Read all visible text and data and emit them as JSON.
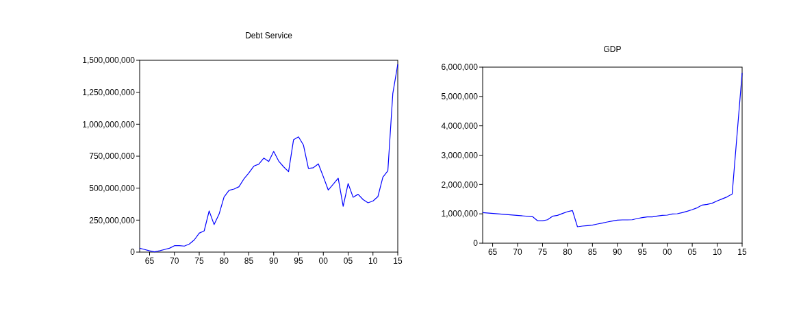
{
  "chart_data": [
    {
      "type": "line",
      "title": "Debt Service",
      "x": [
        1963,
        1964,
        1965,
        1966,
        1967,
        1968,
        1969,
        1970,
        1971,
        1972,
        1973,
        1974,
        1975,
        1976,
        1977,
        1978,
        1979,
        1980,
        1981,
        1982,
        1983,
        1984,
        1985,
        1986,
        1987,
        1988,
        1989,
        1990,
        1991,
        1992,
        1993,
        1994,
        1995,
        1996,
        1997,
        1998,
        1999,
        2000,
        2001,
        2002,
        2003,
        2004,
        2005,
        2006,
        2007,
        2008,
        2009,
        2010,
        2011,
        2012,
        2013,
        2014,
        2015
      ],
      "series": [
        {
          "color": "#0000ff",
          "values": [
            30000000,
            20000000,
            10000000,
            2000000,
            10000000,
            20000000,
            30000000,
            50000000,
            50000000,
            47000000,
            63000000,
            95000000,
            148000000,
            166000000,
            322000000,
            215000000,
            297000000,
            431000000,
            483000000,
            493000000,
            511000000,
            572000000,
            619000000,
            672000000,
            688000000,
            735000000,
            708000000,
            787000000,
            712000000,
            667000000,
            629000000,
            878000000,
            901000000,
            837000000,
            654000000,
            660000000,
            690000000,
            590000000,
            485000000,
            531000000,
            578000000,
            358000000,
            536000000,
            429000000,
            452000000,
            411000000,
            386000000,
            399000000,
            434000000,
            586000000,
            635000000,
            1239000000,
            1468000000
          ]
        }
      ],
      "xlim": [
        1963,
        2015
      ],
      "xticks": [
        {
          "value": 1965,
          "label": "65"
        },
        {
          "value": 1970,
          "label": "70"
        },
        {
          "value": 1975,
          "label": "75"
        },
        {
          "value": 1980,
          "label": "80"
        },
        {
          "value": 1985,
          "label": "85"
        },
        {
          "value": 1990,
          "label": "90"
        },
        {
          "value": 1995,
          "label": "95"
        },
        {
          "value": 2000,
          "label": "00"
        },
        {
          "value": 2005,
          "label": "05"
        },
        {
          "value": 2010,
          "label": "10"
        },
        {
          "value": 2015,
          "label": "15"
        }
      ],
      "ylim": [
        0,
        1500000000
      ],
      "yticks": [
        {
          "value": 0,
          "label": "0"
        },
        {
          "value": 250000000,
          "label": "250,000,000"
        },
        {
          "value": 500000000,
          "label": "500,000,000"
        },
        {
          "value": 750000000,
          "label": "750,000,000"
        },
        {
          "value": 1000000000,
          "label": "1,000,000,000"
        },
        {
          "value": 1250000000,
          "label": "1,250,000,000"
        },
        {
          "value": 1500000000,
          "label": "1,500,000,000"
        }
      ]
    },
    {
      "type": "line",
      "title": "GDP",
      "x": [
        1963,
        1973,
        1974,
        1975,
        1976,
        1977,
        1978,
        1979,
        1980,
        1981,
        1982,
        1983,
        1984,
        1985,
        1986,
        1987,
        1988,
        1989,
        1990,
        1991,
        1992,
        1993,
        1994,
        1995,
        1996,
        1997,
        1998,
        1999,
        2000,
        2001,
        2002,
        2003,
        2004,
        2005,
        2006,
        2007,
        2008,
        2009,
        2010,
        2011,
        2012,
        2013,
        2015
      ],
      "series": [
        {
          "color": "#0000ff",
          "values": [
            1043000,
            903000,
            763000,
            763000,
            800000,
            918000,
            949000,
            1012000,
            1074000,
            1113000,
            560000,
            584000,
            599000,
            615000,
            654000,
            685000,
            724000,
            755000,
            786000,
            794000,
            794000,
            800000,
            840000,
            872000,
            895000,
            895000,
            926000,
            949000,
            957000,
            996000,
            1004000,
            1043000,
            1090000,
            1144000,
            1206000,
            1300000,
            1323000,
            1362000,
            1440000,
            1510000,
            1580000,
            1673000,
            5800000
          ]
        }
      ],
      "xlim": [
        1963,
        2015
      ],
      "xticks": [
        {
          "value": 1965,
          "label": "65"
        },
        {
          "value": 1970,
          "label": "70"
        },
        {
          "value": 1975,
          "label": "75"
        },
        {
          "value": 1980,
          "label": "80"
        },
        {
          "value": 1985,
          "label": "85"
        },
        {
          "value": 1990,
          "label": "90"
        },
        {
          "value": 1995,
          "label": "95"
        },
        {
          "value": 2000,
          "label": "00"
        },
        {
          "value": 2005,
          "label": "05"
        },
        {
          "value": 2010,
          "label": "10"
        },
        {
          "value": 2015,
          "label": "15"
        }
      ],
      "ylim": [
        0,
        6000000
      ],
      "yticks": [
        {
          "value": 0,
          "label": "0"
        },
        {
          "value": 1000000,
          "label": "1,000,000"
        },
        {
          "value": 2000000,
          "label": "2,000,000"
        },
        {
          "value": 3000000,
          "label": "3,000,000"
        },
        {
          "value": 4000000,
          "label": "4,000,000"
        },
        {
          "value": 5000000,
          "label": "5,000,000"
        },
        {
          "value": 6000000,
          "label": "6,000,000"
        }
      ]
    }
  ]
}
